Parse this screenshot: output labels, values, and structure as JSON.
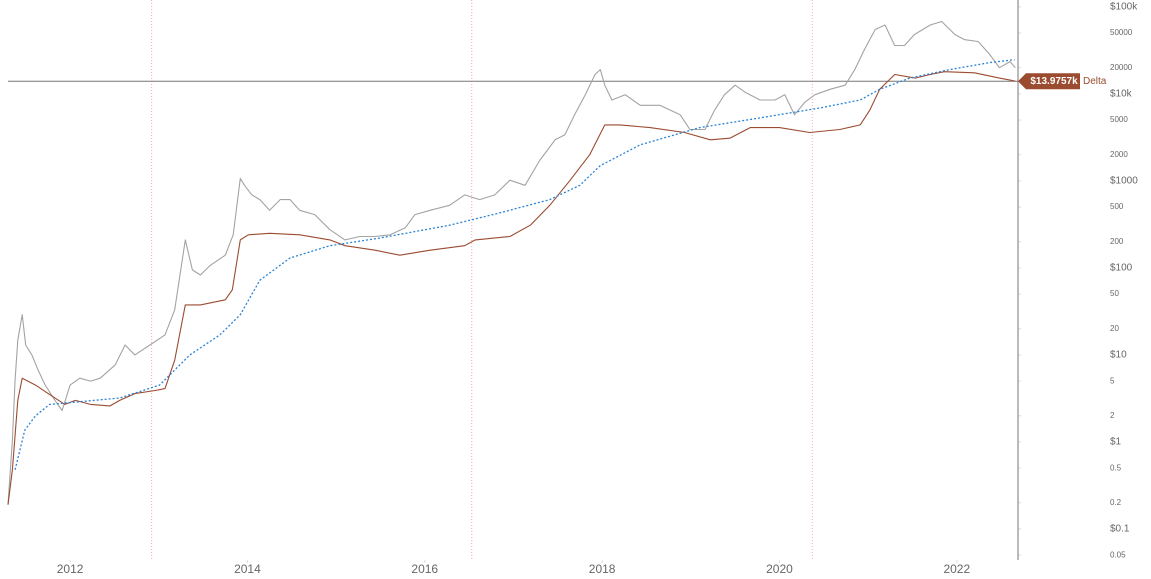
{
  "chart_data": {
    "type": "line",
    "log_scale": true,
    "grid": false,
    "xlim": [
      2011.3,
      2022.69
    ],
    "xticks": [
      2012,
      2014,
      2016,
      2018,
      2020,
      2022
    ],
    "ylim": [
      120000,
      0.044
    ],
    "yticks": [
      {
        "value": 100000,
        "label": "$100k"
      },
      50000,
      20000,
      {
        "value": 10000,
        "label": "$10k"
      },
      5000,
      2000,
      {
        "value": 1000,
        "label": "$1000"
      },
      500,
      200,
      {
        "value": 100,
        "label": "$100"
      },
      50,
      20,
      {
        "value": 10,
        "label": "$10"
      },
      5,
      2,
      {
        "value": 1,
        "label": "$1"
      },
      0.5,
      0.2,
      {
        "value": 0.1,
        "label": "$0.1"
      },
      0.05
    ],
    "halvings": [
      2012.92,
      2016.53,
      2020.37
    ],
    "halving_color": "#f4a6b8",
    "crosshair": {
      "x": 2022.69,
      "value": 13975.7,
      "label": "$13.9757k"
    },
    "series": [
      {
        "color": "#a3a3a3",
        "dash": false,
        "x": [
          2011.3,
          2011.35,
          2011.38,
          2011.41,
          2011.46,
          2011.5,
          2011.57,
          2011.64,
          2011.72,
          2011.83,
          2011.91,
          2012.0,
          2012.11,
          2012.23,
          2012.34,
          2012.51,
          2012.62,
          2012.73,
          2012.9,
          2013.07,
          2013.18,
          2013.3,
          2013.38,
          2013.47,
          2013.58,
          2013.75,
          2013.84,
          2013.92,
          2013.97,
          2014.05,
          2014.14,
          2014.25,
          2014.37,
          2014.48,
          2014.59,
          2014.76,
          2014.93,
          2015.1,
          2015.27,
          2015.44,
          2015.61,
          2015.78,
          2015.89,
          2016.06,
          2016.28,
          2016.45,
          2016.62,
          2016.79,
          2016.96,
          2017.13,
          2017.3,
          2017.47,
          2017.58,
          2017.69,
          2017.81,
          2017.92,
          2017.98,
          2018.03,
          2018.11,
          2018.26,
          2018.43,
          2018.65,
          2018.88,
          2018.99,
          2019.16,
          2019.27,
          2019.38,
          2019.5,
          2019.61,
          2019.78,
          2019.95,
          2020.06,
          2020.17,
          2020.29,
          2020.4,
          2020.57,
          2020.74,
          2020.85,
          2020.96,
          2021.08,
          2021.19,
          2021.3,
          2021.41,
          2021.52,
          2021.7,
          2021.83,
          2021.98,
          2022.09,
          2022.24,
          2022.37,
          2022.48,
          2022.6,
          2022.66
        ],
        "values": [
          0.19,
          1.05,
          5.2,
          14.8,
          29,
          13,
          10,
          6.7,
          4.5,
          3.0,
          2.3,
          4.5,
          5.4,
          5.0,
          5.4,
          7.7,
          13,
          10,
          13,
          17,
          33,
          210,
          95,
          83,
          107,
          140,
          240,
          1070,
          880,
          690,
          610,
          460,
          610,
          610,
          460,
          410,
          275,
          210,
          230,
          230,
          240,
          290,
          410,
          460,
          525,
          690,
          610,
          690,
          1020,
          890,
          1740,
          2970,
          3400,
          5750,
          9800,
          16700,
          19000,
          12600,
          8500,
          9800,
          7400,
          7400,
          5750,
          3900,
          3900,
          6550,
          9800,
          12600,
          10500,
          8500,
          8500,
          9800,
          5750,
          8100,
          9800,
          11300,
          12600,
          19000,
          32600,
          55000,
          62000,
          36000,
          36000,
          48000,
          62000,
          68000,
          48000,
          42000,
          40000,
          28500,
          20000,
          23500,
          20000
        ]
      },
      {
        "name": "Delta",
        "color": "#9a4b30",
        "dash": false,
        "x": [
          2011.3,
          2011.35,
          2011.41,
          2011.46,
          2011.61,
          2011.77,
          2011.94,
          2012.06,
          2012.23,
          2012.45,
          2012.56,
          2012.73,
          2012.96,
          2013.07,
          2013.18,
          2013.3,
          2013.47,
          2013.75,
          2013.83,
          2013.92,
          2014.01,
          2014.25,
          2014.59,
          2014.93,
          2015.1,
          2015.44,
          2015.72,
          2016.06,
          2016.45,
          2016.57,
          2016.96,
          2017.19,
          2017.41,
          2017.64,
          2017.86,
          2018.03,
          2018.2,
          2018.54,
          2018.93,
          2019.22,
          2019.44,
          2019.67,
          2020.0,
          2020.34,
          2020.68,
          2020.91,
          2021.02,
          2021.13,
          2021.3,
          2021.53,
          2021.7,
          2021.86,
          2022.2,
          2022.48,
          2022.6,
          2022.66
        ],
        "values": [
          0.19,
          0.48,
          3.0,
          5.4,
          4.5,
          3.5,
          2.7,
          3.0,
          2.7,
          2.6,
          3.0,
          3.6,
          3.9,
          4.1,
          8.7,
          37.6,
          37.6,
          43,
          56,
          210,
          240,
          250,
          240,
          210,
          180,
          160,
          140,
          160,
          180,
          210,
          230,
          310,
          525,
          1020,
          2000,
          4400,
          4400,
          4100,
          3600,
          2970,
          3100,
          4100,
          4100,
          3600,
          3900,
          4400,
          6550,
          11300,
          16700,
          15200,
          16700,
          18000,
          17500,
          15200,
          14400,
          14000
        ]
      },
      {
        "color": "#2b83d6",
        "dash": true,
        "x": [
          2011.38,
          2011.49,
          2011.61,
          2011.77,
          2012.11,
          2012.56,
          2013.01,
          2013.35,
          2013.69,
          2013.92,
          2014.14,
          2014.48,
          2014.93,
          2015.49,
          2016.28,
          2016.85,
          2017.41,
          2017.75,
          2017.98,
          2018.43,
          2019.1,
          2019.78,
          2020.46,
          2020.91,
          2021.13,
          2021.47,
          2021.92,
          2022.37,
          2022.65
        ],
        "values": [
          0.48,
          1.37,
          2.0,
          2.7,
          2.9,
          3.2,
          4.5,
          10,
          17,
          29,
          72,
          130,
          180,
          220,
          310,
          430,
          610,
          890,
          1500,
          2600,
          4100,
          5300,
          6900,
          8500,
          11300,
          15200,
          19000,
          22900,
          24700
        ]
      }
    ]
  }
}
